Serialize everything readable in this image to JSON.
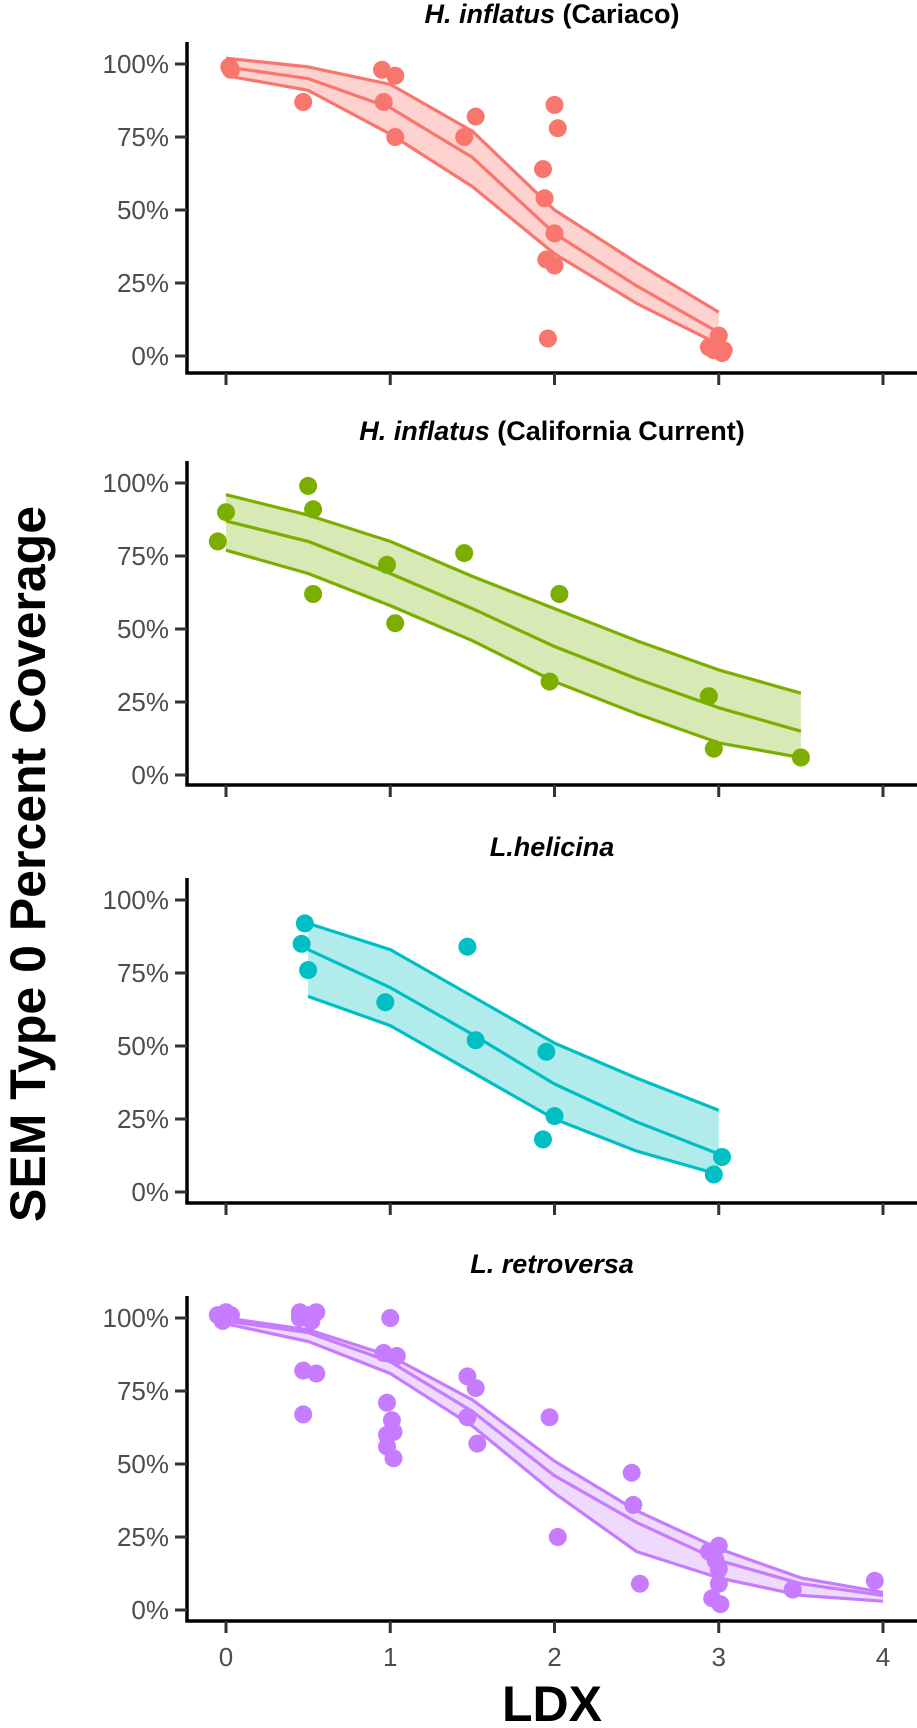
{
  "chart_data": {
    "type": "scatter",
    "ylabel": "SEM Type 0 Percent Coverage",
    "xlabel": "LDX",
    "xlim": [
      -0.25,
      4.2
    ],
    "ylim": [
      -5,
      105
    ],
    "x_ticks": [
      0,
      1,
      2,
      3,
      4
    ],
    "x_tick_labels": [
      "0",
      "1",
      "2",
      "3",
      "4"
    ],
    "y_ticks": [
      0,
      25,
      50,
      75,
      100
    ],
    "y_tick_labels": [
      "0%",
      "25%",
      "50%",
      "75%",
      "100%"
    ],
    "grid": false,
    "panels": [
      {
        "title_italic": "H. inflatus",
        "title_rest": " (Cariaco)",
        "color": "#F8766D",
        "fill": "#FDD2CF",
        "ribbon": {
          "x": [
            0,
            0.5,
            1,
            1.5,
            2,
            2.5,
            3
          ],
          "upper": [
            102,
            99,
            93,
            77,
            50,
            32,
            15
          ],
          "mid": [
            99,
            95,
            85,
            68,
            42,
            24,
            8
          ],
          "lower": [
            96,
            91,
            76,
            58,
            35,
            18,
            4
          ]
        },
        "points": [
          [
            0.02,
            99
          ],
          [
            0.03,
            98
          ],
          [
            0.47,
            87
          ],
          [
            0.95,
            98
          ],
          [
            0.96,
            87
          ],
          [
            1.03,
            96
          ],
          [
            1.03,
            75
          ],
          [
            1.45,
            75
          ],
          [
            1.52,
            82
          ],
          [
            1.93,
            64
          ],
          [
            1.94,
            54
          ],
          [
            1.95,
            33
          ],
          [
            1.96,
            6
          ],
          [
            2.0,
            86
          ],
          [
            2.0,
            42
          ],
          [
            2.0,
            31
          ],
          [
            2.02,
            78
          ],
          [
            2.94,
            3
          ],
          [
            2.97,
            2
          ],
          [
            3.0,
            7
          ],
          [
            3.02,
            1
          ],
          [
            3.03,
            2
          ]
        ]
      },
      {
        "title_italic": "H. inflatus",
        "title_rest": " (California Current)",
        "color": "#7CAE00",
        "fill": "#D8E9B5",
        "ribbon": {
          "x": [
            0,
            0.5,
            1,
            1.5,
            2,
            2.5,
            3,
            3.5
          ],
          "upper": [
            96,
            89,
            80,
            68,
            57,
            46,
            36,
            28
          ],
          "mid": [
            87,
            80,
            69,
            57,
            44,
            33,
            23,
            15
          ],
          "lower": [
            77,
            69,
            58,
            46,
            32,
            21,
            11,
            6
          ]
        },
        "points": [
          [
            -0.05,
            80
          ],
          [
            0.0,
            90
          ],
          [
            0.5,
            99
          ],
          [
            0.53,
            91
          ],
          [
            0.53,
            62
          ],
          [
            0.98,
            72
          ],
          [
            1.03,
            52
          ],
          [
            1.45,
            76
          ],
          [
            1.97,
            32
          ],
          [
            2.03,
            62
          ],
          [
            2.94,
            27
          ],
          [
            2.97,
            9
          ],
          [
            3.5,
            6
          ]
        ]
      },
      {
        "title_italic": "L.helicina",
        "title_rest": "",
        "color": "#00BFC4",
        "fill": "#B1EBEC",
        "ribbon": {
          "x": [
            0.5,
            1,
            1.5,
            2,
            2.5,
            3
          ],
          "upper": [
            92,
            83,
            67,
            51,
            39,
            28
          ],
          "mid": [
            83,
            70,
            54,
            37,
            24,
            13
          ],
          "lower": [
            67,
            57,
            41,
            25,
            14,
            6
          ]
        },
        "points": [
          [
            0.46,
            85
          ],
          [
            0.48,
            92
          ],
          [
            0.5,
            76
          ],
          [
            0.97,
            65
          ],
          [
            1.47,
            84
          ],
          [
            1.52,
            52
          ],
          [
            1.93,
            18
          ],
          [
            1.95,
            48
          ],
          [
            2.0,
            26
          ],
          [
            2.97,
            6
          ],
          [
            3.02,
            12
          ]
        ]
      },
      {
        "title_italic": "L. retroversa",
        "title_rest": "",
        "color": "#C77CFF",
        "fill": "#EEDAFD",
        "ribbon": {
          "x": [
            0,
            0.5,
            1,
            1.5,
            2,
            2.5,
            3,
            3.5,
            4
          ],
          "upper": [
            100,
            96,
            87,
            72,
            51,
            34,
            21,
            11,
            6
          ],
          "mid": [
            99,
            95,
            85,
            68,
            46,
            30,
            17,
            9,
            5
          ],
          "lower": [
            98,
            92,
            81,
            63,
            40,
            20,
            11,
            5,
            3
          ]
        },
        "points": [
          [
            -0.05,
            101
          ],
          [
            -0.02,
            99
          ],
          [
            0.0,
            102
          ],
          [
            0.03,
            101
          ],
          [
            0.45,
            102
          ],
          [
            0.45,
            100
          ],
          [
            0.47,
            82
          ],
          [
            0.47,
            67
          ],
          [
            0.5,
            101
          ],
          [
            0.52,
            99
          ],
          [
            0.55,
            102
          ],
          [
            0.55,
            81
          ],
          [
            0.96,
            88
          ],
          [
            0.98,
            71
          ],
          [
            0.98,
            60
          ],
          [
            0.98,
            56
          ],
          [
            1.0,
            100
          ],
          [
            1.01,
            65
          ],
          [
            1.02,
            61
          ],
          [
            1.02,
            52
          ],
          [
            1.04,
            87
          ],
          [
            1.47,
            80
          ],
          [
            1.47,
            66
          ],
          [
            1.52,
            76
          ],
          [
            1.53,
            57
          ],
          [
            1.97,
            66
          ],
          [
            2.02,
            25
          ],
          [
            2.47,
            47
          ],
          [
            2.48,
            36
          ],
          [
            2.52,
            9
          ],
          [
            2.94,
            20
          ],
          [
            2.96,
            4
          ],
          [
            2.98,
            17
          ],
          [
            3.0,
            22
          ],
          [
            3.0,
            14
          ],
          [
            3.0,
            9
          ],
          [
            3.01,
            2
          ],
          [
            3.45,
            7
          ],
          [
            3.95,
            10
          ]
        ]
      }
    ]
  }
}
